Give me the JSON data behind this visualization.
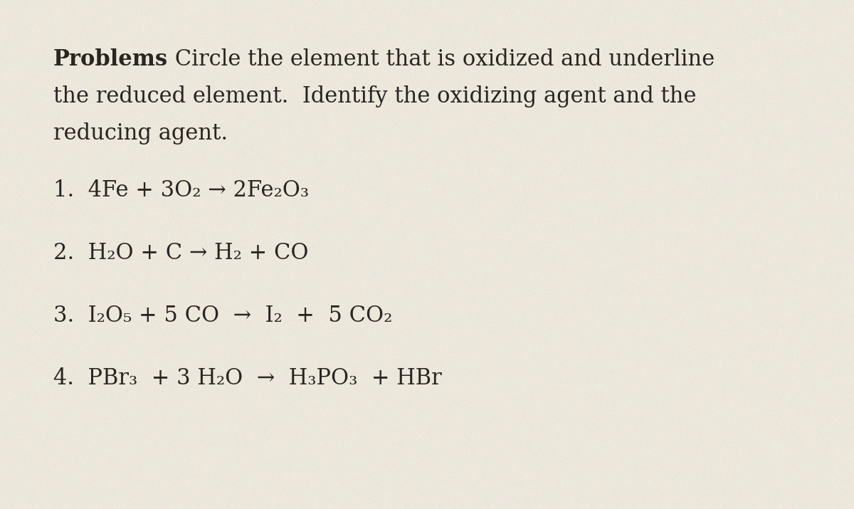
{
  "background_color": "#ede8dc",
  "text_color": "#2a2520",
  "title_bold": "Problems",
  "title_normal": " Circle the element that is oxidized and underline",
  "subtitle_line2": "the reduced element.  Identify the oxidizing agent and the",
  "subtitle_line3": "reducing agent.",
  "equations": [
    "1.  4Fe + 3O₂ → 2Fe₂O₃",
    "2.  H₂O + C → H₂ + CO",
    "3.  I₂O₅ + 5 CO  →  I₂  +  5 CO₂",
    "4.  PBr₃  + 3 H₂O  →  H₃PO₃  + HBr"
  ],
  "figsize": [
    12.0,
    7.15
  ],
  "dpi": 100,
  "font_family": "DejaVu Serif",
  "header_fontsize": 22,
  "equation_fontsize": 22
}
